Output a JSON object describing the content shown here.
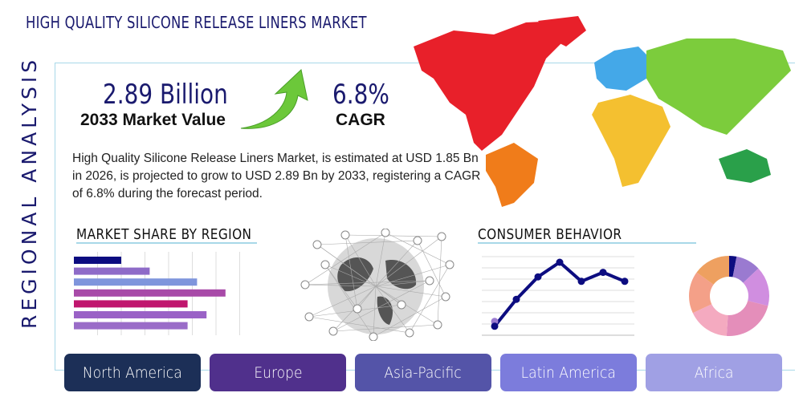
{
  "header": {
    "title": "HIGH QUALITY SILICONE RELEASE LINERS MARKET",
    "side_label": "REGIONAL ANALYSIS"
  },
  "kpis": {
    "market_value": "2.89 Billion",
    "market_value_label": "2033 Market Value",
    "cagr": "6.8%",
    "cagr_label": "CAGR"
  },
  "description": "High Quality Silicone Release Liners Market, is estimated at USD 1.85 Bn in 2026, is projected to grow to USD 2.89 Bn by 2033, registering a CAGR of 6.8% during the forecast period.",
  "sections": {
    "market_share": "MARKET SHARE BY REGION",
    "consumer_behavior": "CONSUMER BEHAVIOR"
  },
  "chart_data": [
    {
      "type": "bar",
      "orientation": "horizontal",
      "title": "MARKET SHARE BY REGION",
      "values": [
        2,
        3.2,
        5.2,
        6.4,
        4.8,
        5.6,
        4.8
      ],
      "colors": [
        "#0c0c80",
        "#8e6bc8",
        "#7f95dc",
        "#a84aa8",
        "#c0166e",
        "#9a62c6",
        "#9a6cc8"
      ],
      "xlim": [
        0,
        7
      ],
      "grid": true
    },
    {
      "type": "line",
      "title": "CONSUMER BEHAVIOR",
      "values": [
        0.8,
        3.2,
        5.2,
        6.5,
        4.8,
        5.6,
        4.8
      ],
      "ylim": [
        0,
        7
      ],
      "grid": true,
      "color": "#0c0c80"
    },
    {
      "type": "pie",
      "donut": true,
      "values": [
        3,
        10,
        16,
        22,
        17,
        17,
        15
      ],
      "colors": [
        "#0c0c80",
        "#9a7ad0",
        "#d08ee0",
        "#e48eba",
        "#f4aac0",
        "#f4a088",
        "#eea060"
      ]
    }
  ],
  "regions": [
    {
      "label": "North America",
      "color": "#1c2f57"
    },
    {
      "label": "Europe",
      "color": "#50308c"
    },
    {
      "label": "Asia-Pacific",
      "color": "#5454a8"
    },
    {
      "label": "Latin America",
      "color": "#7c7cdc"
    },
    {
      "label": "Africa",
      "color": "#a0a0e4"
    }
  ],
  "icons": {
    "growth": "green-up-arrow",
    "map": "world-map",
    "globe": "network-globe"
  }
}
